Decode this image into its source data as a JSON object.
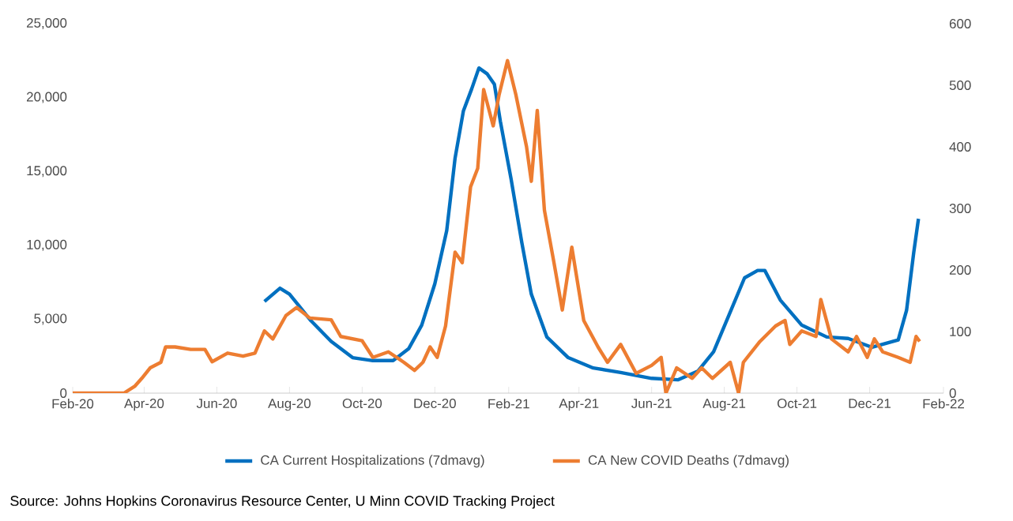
{
  "chart_data": {
    "type": "line",
    "xlim": [
      "2020-02-01",
      "2022-02-01"
    ],
    "xticks": [
      {
        "value": "2020-02-01",
        "label": "Feb-20"
      },
      {
        "value": "2020-04-01",
        "label": "Apr-20"
      },
      {
        "value": "2020-06-01",
        "label": "Jun-20"
      },
      {
        "value": "2020-08-01",
        "label": "Aug-20"
      },
      {
        "value": "2020-10-01",
        "label": "Oct-20"
      },
      {
        "value": "2020-12-01",
        "label": "Dec-20"
      },
      {
        "value": "2021-02-01",
        "label": "Feb-21"
      },
      {
        "value": "2021-04-01",
        "label": "Apr-21"
      },
      {
        "value": "2021-06-01",
        "label": "Jun-21"
      },
      {
        "value": "2021-08-01",
        "label": "Aug-21"
      },
      {
        "value": "2021-10-01",
        "label": "Oct-21"
      },
      {
        "value": "2021-12-01",
        "label": "Dec-21"
      },
      {
        "value": "2022-02-01",
        "label": "Feb-22"
      }
    ],
    "ylim": [
      0,
      25000
    ],
    "yticks": [
      0,
      {
        "value": 5000,
        "label": "5,000"
      },
      {
        "value": 10000,
        "label": "10,000"
      },
      {
        "value": 15000,
        "label": "15,000"
      },
      {
        "value": 20000,
        "label": "20,000"
      },
      {
        "value": 25000,
        "label": "25,000"
      }
    ],
    "y2lim": [
      0,
      600
    ],
    "y2ticks": [
      0,
      100,
      200,
      300,
      400,
      500,
      600
    ],
    "legend": "bottom",
    "grid": false,
    "annotations": [
      "Source: Johns Hopkins Coronavirus Resource Center, U Minn COVID Tracking Project"
    ],
    "series": [
      {
        "name": "CA Current Hospitalizations (7dmavg)",
        "color": "#0070c0",
        "axis": "y",
        "x": [
          "2020-07-11",
          "2020-07-24",
          "2020-08-01",
          "2020-08-08",
          "2020-08-19",
          "2020-09-05",
          "2020-09-23",
          "2020-10-10",
          "2020-10-27",
          "2020-11-09",
          "2020-11-20",
          "2020-12-01",
          "2020-12-11",
          "2020-12-18",
          "2020-12-25",
          "2021-01-01",
          "2021-01-07",
          "2021-01-14",
          "2021-01-20",
          "2021-01-25",
          "2021-02-03",
          "2021-02-12",
          "2021-02-20",
          "2021-03-05",
          "2021-03-23",
          "2021-04-13",
          "2021-05-06",
          "2021-06-01",
          "2021-06-23",
          "2021-07-10",
          "2021-07-23",
          "2021-08-05",
          "2021-08-18",
          "2021-08-29",
          "2021-09-04",
          "2021-09-17",
          "2021-10-05",
          "2021-10-26",
          "2021-11-13",
          "2021-12-03",
          "2021-12-25",
          "2022-01-01",
          "2022-01-07",
          "2022-01-11"
        ],
        "values": [
          6200,
          7100,
          6700,
          6000,
          4900,
          3500,
          2400,
          2200,
          2200,
          3000,
          4600,
          7400,
          11000,
          15900,
          19100,
          20600,
          22000,
          21600,
          20900,
          18400,
          14500,
          10200,
          6700,
          3800,
          2400,
          1700,
          1400,
          1000,
          900,
          1500,
          2800,
          5300,
          7800,
          8300,
          8300,
          6300,
          4600,
          3800,
          3700,
          3100,
          3600,
          5600,
          9500,
          11800
        ]
      },
      {
        "name": "CA New COVID Deaths (7dmavg)",
        "color": "#ed7d31",
        "axis": "y2",
        "x": [
          "2020-02-01",
          "2020-03-15",
          "2020-03-24",
          "2020-03-30",
          "2020-04-06",
          "2020-04-15",
          "2020-04-19",
          "2020-04-27",
          "2020-05-10",
          "2020-05-22",
          "2020-05-28",
          "2020-06-10",
          "2020-06-23",
          "2020-07-03",
          "2020-07-11",
          "2020-07-18",
          "2020-07-29",
          "2020-08-07",
          "2020-08-18",
          "2020-09-05",
          "2020-09-13",
          "2020-10-01",
          "2020-10-10",
          "2020-10-23",
          "2020-11-05",
          "2020-11-14",
          "2020-11-21",
          "2020-11-27",
          "2020-12-03",
          "2020-12-10",
          "2020-12-18",
          "2020-12-24",
          "2020-12-31",
          "2021-01-06",
          "2021-01-11",
          "2021-01-19",
          "2021-01-24",
          "2021-01-31",
          "2021-02-07",
          "2021-02-16",
          "2021-02-20",
          "2021-02-25",
          "2021-03-03",
          "2021-03-11",
          "2021-03-18",
          "2021-03-26",
          "2021-04-05",
          "2021-04-17",
          "2021-04-25",
          "2021-05-06",
          "2021-05-19",
          "2021-06-01",
          "2021-06-09",
          "2021-06-13",
          "2021-06-22",
          "2021-07-05",
          "2021-07-13",
          "2021-07-22",
          "2021-08-06",
          "2021-08-13",
          "2021-08-17",
          "2021-08-31",
          "2021-09-13",
          "2021-09-21",
          "2021-09-25",
          "2021-10-05",
          "2021-10-17",
          "2021-10-21",
          "2021-10-30",
          "2021-11-13",
          "2021-11-20",
          "2021-11-29",
          "2021-12-05",
          "2021-12-12",
          "2021-12-25",
          "2022-01-04",
          "2022-01-09",
          "2022-01-12"
        ],
        "values": [
          0,
          0,
          11,
          24,
          41,
          50,
          75,
          75,
          71,
          71,
          51,
          65,
          60,
          65,
          101,
          88,
          126,
          139,
          122,
          119,
          92,
          85,
          58,
          67,
          50,
          37,
          50,
          75,
          58,
          109,
          229,
          212,
          335,
          365,
          493,
          434,
          485,
          540,
          485,
          400,
          344,
          459,
          297,
          212,
          135,
          237,
          118,
          75,
          50,
          79,
          32,
          45,
          58,
          0,
          41,
          24,
          41,
          24,
          50,
          0,
          50,
          84,
          109,
          118,
          79,
          101,
          92,
          152,
          88,
          67,
          92,
          58,
          88,
          67,
          58,
          50,
          92,
          84
        ]
      }
    ]
  }
}
